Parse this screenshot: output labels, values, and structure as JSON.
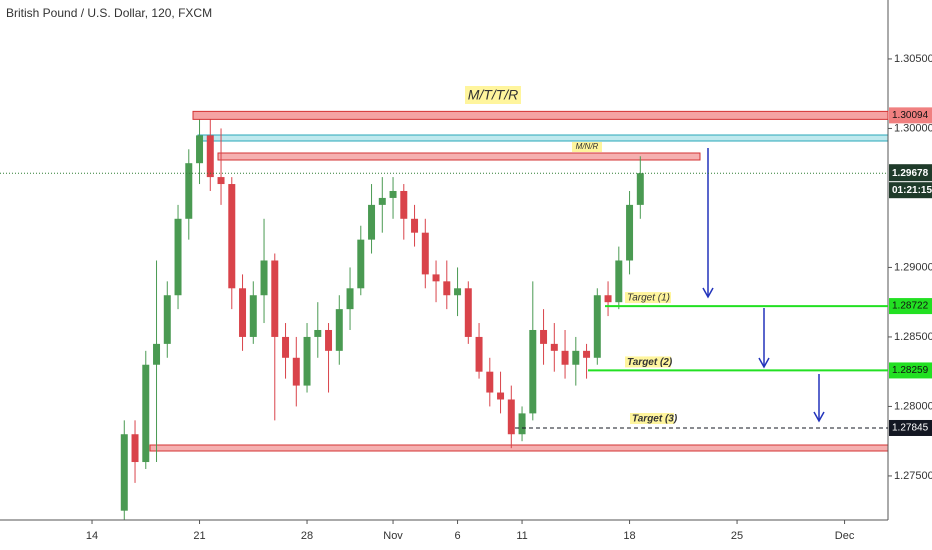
{
  "chart_data": {
    "type": "candlestick",
    "title": "British Pound / U.S. Dollar, 120, FXCM",
    "x": [
      1.5,
      2,
      2.5,
      3,
      3.5,
      4,
      4.5,
      5,
      5.5,
      6,
      6.5,
      7,
      7.5,
      8,
      8.5,
      9,
      9.5,
      10,
      10.5,
      11,
      11.5,
      12,
      12.5,
      13,
      13.5,
      14,
      14.5,
      15,
      15.5,
      16,
      16.5,
      17,
      17.5,
      18,
      18.5,
      19,
      19.5,
      20,
      20.5,
      21,
      21.5,
      22,
      22.5,
      23,
      23.5,
      24,
      24.5,
      25,
      25.5
    ],
    "open": [
      1.2725,
      1.278,
      1.276,
      1.283,
      1.2845,
      1.288,
      1.2935,
      1.2975,
      1.2995,
      1.2965,
      1.296,
      1.2885,
      1.285,
      1.288,
      1.2905,
      1.285,
      1.2835,
      1.2815,
      1.285,
      1.2855,
      1.284,
      1.287,
      1.2885,
      1.292,
      1.2945,
      1.295,
      1.2955,
      1.2935,
      1.2925,
      1.2895,
      1.289,
      1.288,
      1.2885,
      1.285,
      1.2825,
      1.281,
      1.2805,
      1.278,
      1.2795,
      1.2855,
      1.2845,
      1.284,
      1.283,
      1.284,
      1.2835,
      1.288,
      1.2875,
      1.2905,
      1.2945
    ],
    "high": [
      1.279,
      1.279,
      1.284,
      1.2905,
      1.289,
      1.2945,
      1.2985,
      1.301,
      1.301,
      1.3,
      1.2965,
      1.2895,
      1.289,
      1.2935,
      1.291,
      1.286,
      1.285,
      1.286,
      1.2875,
      1.286,
      1.288,
      1.29,
      1.293,
      1.296,
      1.2965,
      1.2965,
      1.296,
      1.2945,
      1.2935,
      1.2905,
      1.2905,
      1.29,
      1.289,
      1.286,
      1.2835,
      1.2825,
      1.2815,
      1.28,
      1.289,
      1.287,
      1.286,
      1.2855,
      1.285,
      1.2845,
      1.2885,
      1.289,
      1.2915,
      1.2955,
      1.298
    ],
    "low": [
      1.2718,
      1.2745,
      1.2755,
      1.276,
      1.2835,
      1.287,
      1.292,
      1.296,
      1.2955,
      1.2945,
      1.287,
      1.284,
      1.2845,
      1.286,
      1.279,
      1.282,
      1.28,
      1.281,
      1.2835,
      1.281,
      1.283,
      1.2855,
      1.288,
      1.291,
      1.2925,
      1.2935,
      1.292,
      1.2915,
      1.2885,
      1.2875,
      1.287,
      1.2865,
      1.2845,
      1.282,
      1.28,
      1.2795,
      1.277,
      1.2775,
      1.279,
      1.283,
      1.2825,
      1.282,
      1.2815,
      1.282,
      1.283,
      1.2865,
      1.287,
      1.2895,
      1.2935
    ],
    "close": [
      1.278,
      1.276,
      1.283,
      1.2845,
      1.288,
      1.2935,
      1.2975,
      1.2995,
      1.2965,
      1.296,
      1.2885,
      1.285,
      1.288,
      1.2905,
      1.285,
      1.2835,
      1.2815,
      1.285,
      1.2855,
      1.284,
      1.287,
      1.2885,
      1.292,
      1.2945,
      1.295,
      1.2955,
      1.2935,
      1.2925,
      1.2895,
      1.289,
      1.288,
      1.2885,
      1.285,
      1.2825,
      1.281,
      1.2805,
      1.278,
      1.2795,
      1.2855,
      1.2845,
      1.284,
      1.283,
      1.284,
      1.2835,
      1.288,
      1.2875,
      1.2905,
      1.2945,
      1.29678
    ],
    "up_color": "#4a9a52",
    "down_color": "#d9434a",
    "xlim": [
      -4.28,
      37.02
    ],
    "ylim": [
      1.27183,
      1.30924
    ],
    "xticks": [
      {
        "value": 0,
        "label": "14"
      },
      {
        "value": 5,
        "label": "21"
      },
      {
        "value": 10,
        "label": "28"
      },
      {
        "value": 14,
        "label": "Nov"
      },
      {
        "value": 17,
        "label": "6"
      },
      {
        "value": 20,
        "label": "11"
      },
      {
        "value": 25,
        "label": "18"
      },
      {
        "value": 30,
        "label": "25"
      },
      {
        "value": 35,
        "label": "Dec"
      }
    ],
    "yticks": [
      {
        "value": 1.305,
        "label": "1.30500"
      },
      {
        "value": 1.3,
        "label": "1.30000"
      },
      {
        "value": 1.29,
        "label": "1.29000"
      },
      {
        "value": 1.285,
        "label": "1.28500"
      },
      {
        "value": 1.28,
        "label": "1.28000"
      },
      {
        "value": 1.275,
        "label": "1.27500"
      }
    ],
    "current_price": 1.29678,
    "countdown": "01:21:15",
    "levels": [
      {
        "value": 1.30094,
        "color": "#f08080",
        "text": "M/T/T/R"
      },
      {
        "value": 1.28722,
        "color": "#22e022",
        "text": "Target (1)"
      },
      {
        "value": 1.28259,
        "color": "#22e022",
        "text": "Target (2)"
      },
      {
        "value": 1.27845,
        "color": "#131722",
        "text": "Target (3)"
      }
    ],
    "zone_label": "M/N/R"
  }
}
